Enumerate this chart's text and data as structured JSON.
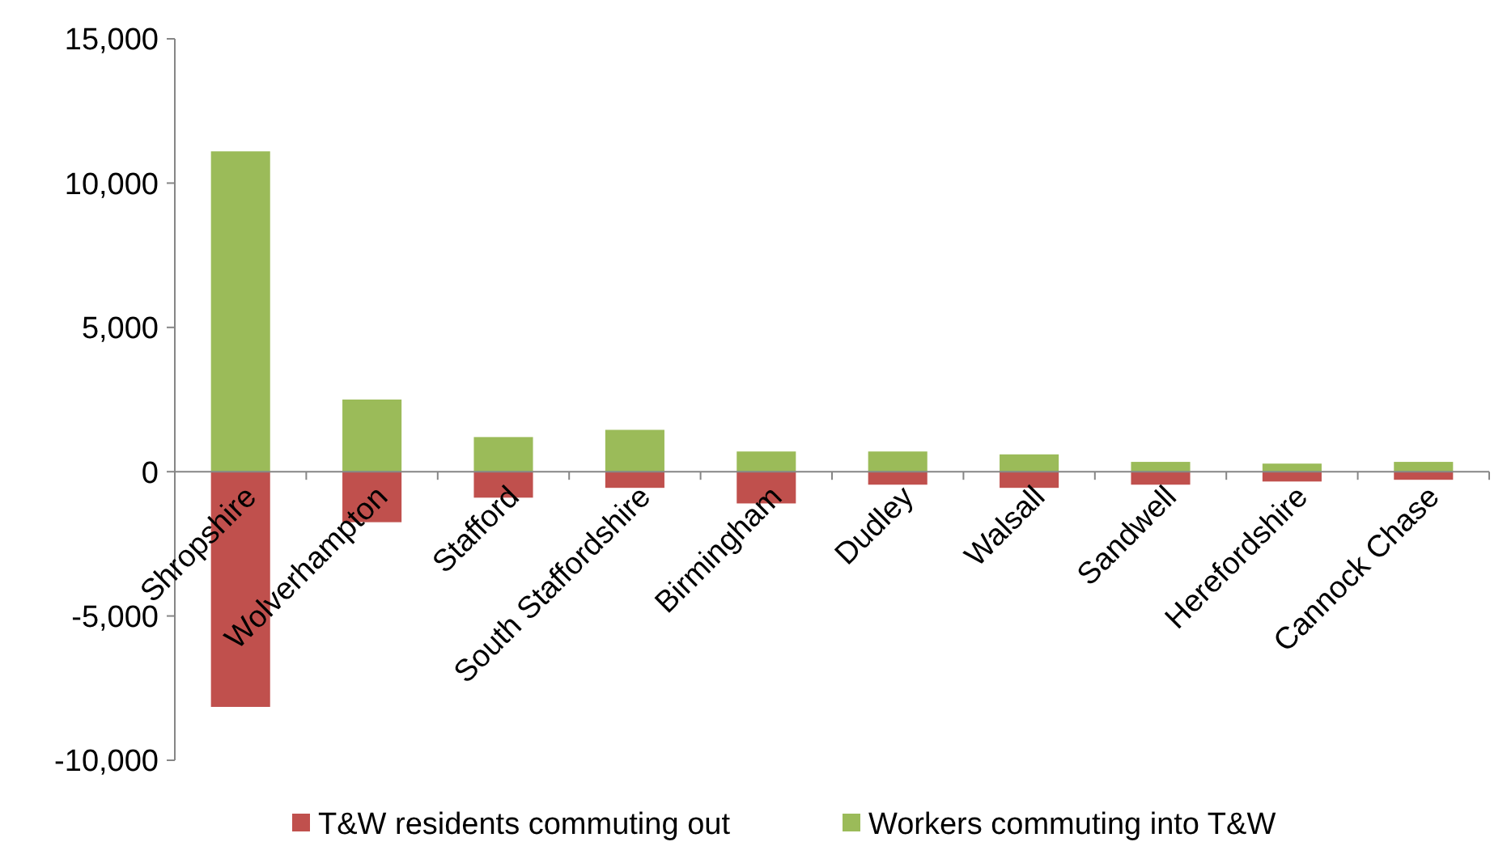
{
  "chart_data": {
    "type": "bar",
    "stacked": true,
    "categories": [
      "Shropshire",
      "Wolverhampton",
      "Stafford",
      "South Staffordshire",
      "Birmingham",
      "Dudley",
      "Walsall",
      "Sandwell",
      "Herefordshire",
      "Cannock Chase"
    ],
    "series": [
      {
        "name": "T&W residents commuting out",
        "color": "#c0504d",
        "values": [
          -8150,
          -1750,
          -900,
          -560,
          -1100,
          -450,
          -560,
          -450,
          -340,
          -280
        ]
      },
      {
        "name": "Workers commuting into T&W",
        "color": "#9bbb59",
        "values": [
          11100,
          2500,
          1200,
          1450,
          700,
          700,
          600,
          340,
          280,
          340
        ]
      }
    ],
    "ylim": [
      -10000,
      15000
    ],
    "yticks": [
      {
        "value": -10000,
        "label": "-10,000"
      },
      {
        "value": -5000,
        "label": "-5,000"
      },
      0,
      {
        "value": 5000,
        "label": "5,000"
      },
      {
        "value": 10000,
        "label": "10,000"
      },
      {
        "value": 15000,
        "label": "15,000"
      }
    ],
    "grid": false,
    "legend": "bottom"
  }
}
